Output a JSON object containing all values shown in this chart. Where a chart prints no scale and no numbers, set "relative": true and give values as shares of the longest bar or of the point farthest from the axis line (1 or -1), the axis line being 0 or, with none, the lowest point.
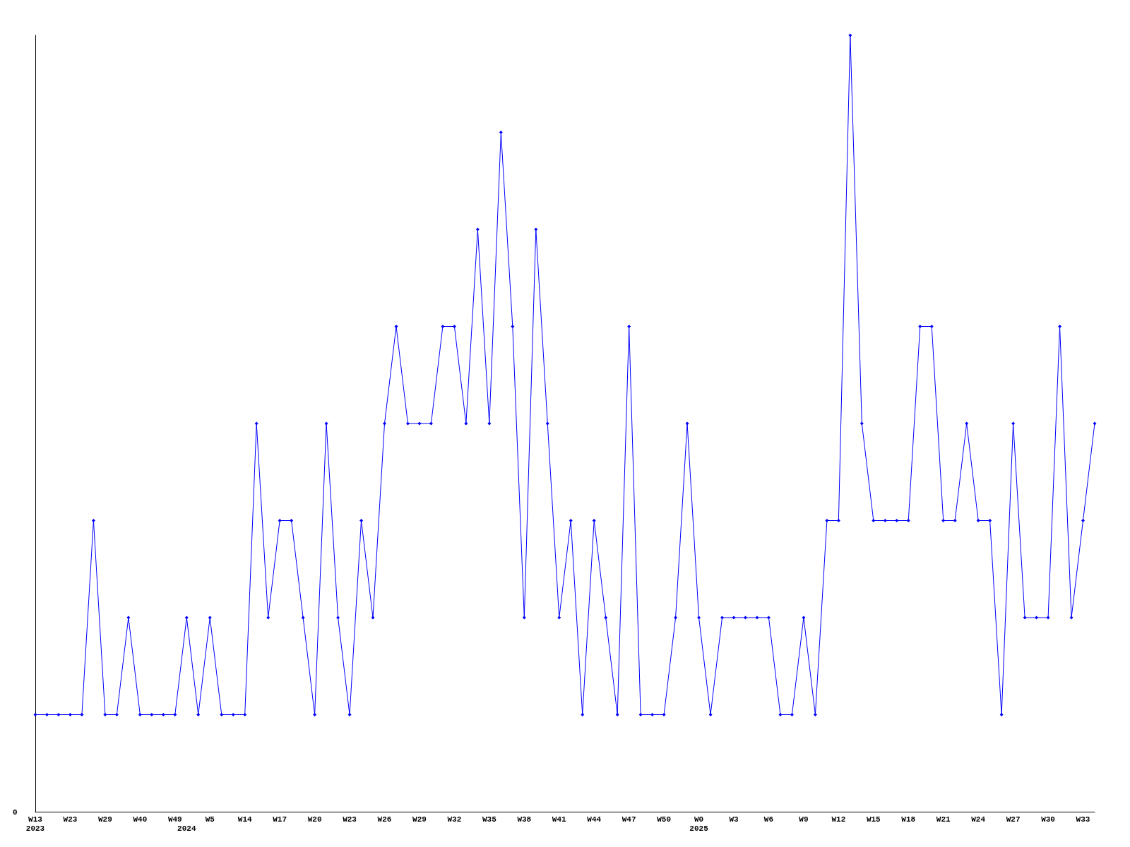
{
  "chart_data": {
    "type": "line",
    "relative": true,
    "marker": "diamond",
    "line_style": "solid",
    "grid": false,
    "annotations": [
      "0"
    ],
    "categories": [
      "W13\n2023",
      null,
      null,
      "W23",
      null,
      null,
      "W29",
      null,
      null,
      "W40",
      null,
      null,
      "W49",
      "\n2024",
      null,
      "W5",
      null,
      null,
      "W14",
      null,
      null,
      "W17",
      null,
      null,
      "W20",
      null,
      null,
      "W23",
      null,
      null,
      "W26",
      null,
      null,
      "W29",
      null,
      null,
      "W32",
      null,
      null,
      "W35",
      null,
      null,
      "W38",
      null,
      null,
      "W41",
      null,
      null,
      "W44",
      null,
      null,
      "W47",
      null,
      null,
      "W50",
      null,
      null,
      "W0\n2025",
      null,
      null,
      "W3",
      null,
      null,
      "W6",
      null,
      null,
      "W9",
      null,
      null,
      "W12",
      null,
      null,
      "W15",
      null,
      null,
      "W18",
      null,
      null,
      "W21",
      null,
      null,
      "W24",
      null,
      null,
      "W27",
      null,
      null,
      "W30",
      null,
      null,
      "W33",
      null
    ],
    "series": [
      {
        "color": "#0000ff",
        "values": [
          0.125,
          0.125,
          0.125,
          0.125,
          0.125,
          0.375,
          0.125,
          0.125,
          0.25,
          0.125,
          0.125,
          0.125,
          0.125,
          0.25,
          0.125,
          0.25,
          0.125,
          0.125,
          0.125,
          0.5,
          0.25,
          0.375,
          0.375,
          0.25,
          0.125,
          0.5,
          0.25,
          0.125,
          0.375,
          0.25,
          0.5,
          0.625,
          0.5,
          0.5,
          0.5,
          0.625,
          0.625,
          0.5,
          0.75,
          0.5,
          0.875,
          0.625,
          0.25,
          0.75,
          0.5,
          0.25,
          0.375,
          0.125,
          0.375,
          0.25,
          0.125,
          0.625,
          0.125,
          0.125,
          0.125,
          0.25,
          0.5,
          0.25,
          0.125,
          0.25,
          0.25,
          0.25,
          0.25,
          0.25,
          0.125,
          0.125,
          0.25,
          0.125,
          0.375,
          0.375,
          1,
          0.5,
          0.375,
          0.375,
          0.375,
          0.375,
          0.625,
          0.625,
          0.375,
          0.375,
          0.5,
          0.375,
          0.375,
          0.125,
          0.5,
          0.25,
          0.25,
          0.25,
          0.625,
          0.25,
          0.375,
          0.5
        ]
      }
    ]
  }
}
